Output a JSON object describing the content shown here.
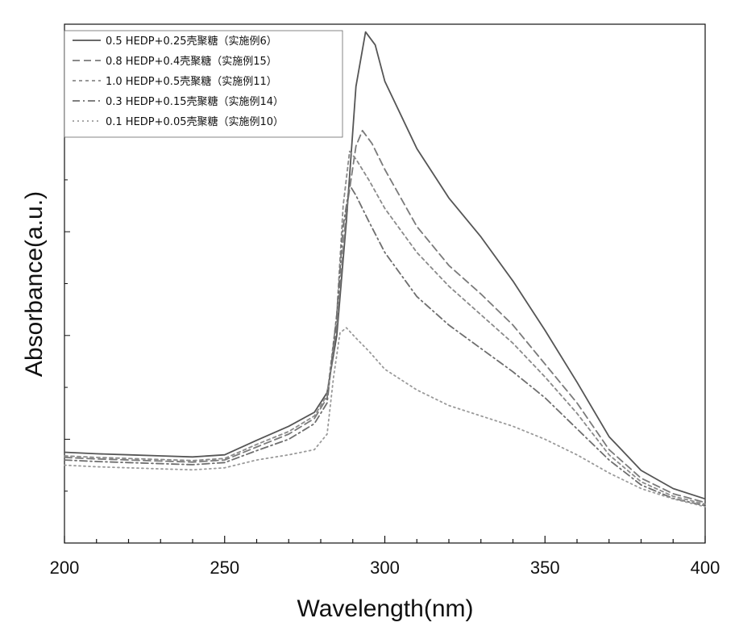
{
  "chart_data": {
    "type": "line",
    "title": "",
    "xlabel": "Wavelength(nm)",
    "ylabel": "Absorbance(a.u.)",
    "xlim": [
      200,
      400
    ],
    "ylim": [
      0,
      1.0
    ],
    "x_ticks": [
      200,
      250,
      300,
      350,
      400
    ],
    "x_tick_labels": [
      "200",
      "250",
      "300",
      "350",
      "400"
    ],
    "y_ticks_labeled": false,
    "grid": false,
    "legend_position": "top-left",
    "series": [
      {
        "name": "0.5 HEDP+0.25壳聚糖（实施例6）",
        "style": "solid",
        "color": "#555555",
        "points": [
          [
            200,
            0.175
          ],
          [
            210,
            0.172
          ],
          [
            220,
            0.17
          ],
          [
            230,
            0.168
          ],
          [
            240,
            0.166
          ],
          [
            250,
            0.17
          ],
          [
            260,
            0.198
          ],
          [
            270,
            0.225
          ],
          [
            278,
            0.252
          ],
          [
            282,
            0.29
          ],
          [
            285,
            0.4
          ],
          [
            288,
            0.62
          ],
          [
            291,
            0.88
          ],
          [
            294,
            0.985
          ],
          [
            297,
            0.96
          ],
          [
            300,
            0.89
          ],
          [
            310,
            0.76
          ],
          [
            320,
            0.665
          ],
          [
            330,
            0.59
          ],
          [
            340,
            0.505
          ],
          [
            350,
            0.41
          ],
          [
            360,
            0.31
          ],
          [
            370,
            0.205
          ],
          [
            380,
            0.14
          ],
          [
            390,
            0.105
          ],
          [
            400,
            0.085
          ]
        ]
      },
      {
        "name": "0.8 HEDP+0.4壳聚糖（实施例15）",
        "style": "dash",
        "color": "#7a7a7a",
        "points": [
          [
            200,
            0.165
          ],
          [
            210,
            0.162
          ],
          [
            220,
            0.16
          ],
          [
            230,
            0.158
          ],
          [
            240,
            0.156
          ],
          [
            250,
            0.16
          ],
          [
            260,
            0.185
          ],
          [
            270,
            0.21
          ],
          [
            278,
            0.24
          ],
          [
            282,
            0.28
          ],
          [
            285,
            0.42
          ],
          [
            288,
            0.64
          ],
          [
            291,
            0.765
          ],
          [
            293,
            0.795
          ],
          [
            296,
            0.77
          ],
          [
            300,
            0.72
          ],
          [
            310,
            0.61
          ],
          [
            320,
            0.535
          ],
          [
            330,
            0.48
          ],
          [
            340,
            0.42
          ],
          [
            350,
            0.345
          ],
          [
            360,
            0.27
          ],
          [
            370,
            0.18
          ],
          [
            380,
            0.125
          ],
          [
            390,
            0.095
          ],
          [
            400,
            0.078
          ]
        ]
      },
      {
        "name": "1.0 HEDP+0.5壳聚糖（实施例11）",
        "style": "short-dash",
        "color": "#8a8a8a",
        "points": [
          [
            200,
            0.168
          ],
          [
            210,
            0.165
          ],
          [
            220,
            0.163
          ],
          [
            230,
            0.161
          ],
          [
            240,
            0.159
          ],
          [
            250,
            0.163
          ],
          [
            260,
            0.19
          ],
          [
            270,
            0.215
          ],
          [
            278,
            0.245
          ],
          [
            282,
            0.285
          ],
          [
            285,
            0.44
          ],
          [
            287,
            0.65
          ],
          [
            289,
            0.755
          ],
          [
            291,
            0.74
          ],
          [
            295,
            0.7
          ],
          [
            300,
            0.645
          ],
          [
            310,
            0.56
          ],
          [
            320,
            0.495
          ],
          [
            330,
            0.44
          ],
          [
            340,
            0.385
          ],
          [
            350,
            0.32
          ],
          [
            360,
            0.25
          ],
          [
            370,
            0.17
          ],
          [
            380,
            0.118
          ],
          [
            390,
            0.09
          ],
          [
            400,
            0.075
          ]
        ]
      },
      {
        "name": "0.3 HEDP+0.15壳聚糖（实施例14）",
        "style": "dash-dot",
        "color": "#6e6e6e",
        "points": [
          [
            200,
            0.16
          ],
          [
            210,
            0.157
          ],
          [
            220,
            0.155
          ],
          [
            230,
            0.153
          ],
          [
            240,
            0.151
          ],
          [
            250,
            0.155
          ],
          [
            260,
            0.178
          ],
          [
            270,
            0.2
          ],
          [
            278,
            0.23
          ],
          [
            282,
            0.27
          ],
          [
            285,
            0.44
          ],
          [
            287,
            0.61
          ],
          [
            289,
            0.69
          ],
          [
            291,
            0.67
          ],
          [
            295,
            0.62
          ],
          [
            300,
            0.56
          ],
          [
            310,
            0.475
          ],
          [
            320,
            0.42
          ],
          [
            330,
            0.375
          ],
          [
            340,
            0.33
          ],
          [
            350,
            0.28
          ],
          [
            360,
            0.22
          ],
          [
            370,
            0.16
          ],
          [
            380,
            0.112
          ],
          [
            390,
            0.086
          ],
          [
            400,
            0.072
          ]
        ]
      },
      {
        "name": "0.1 HEDP+0.05壳聚糖（实施例10）",
        "style": "dot-dot",
        "color": "#9a9a9a",
        "points": [
          [
            200,
            0.15
          ],
          [
            210,
            0.147
          ],
          [
            220,
            0.145
          ],
          [
            230,
            0.143
          ],
          [
            240,
            0.141
          ],
          [
            250,
            0.145
          ],
          [
            260,
            0.16
          ],
          [
            270,
            0.17
          ],
          [
            278,
            0.18
          ],
          [
            282,
            0.21
          ],
          [
            284,
            0.32
          ],
          [
            286,
            0.405
          ],
          [
            288,
            0.415
          ],
          [
            291,
            0.395
          ],
          [
            295,
            0.37
          ],
          [
            300,
            0.335
          ],
          [
            310,
            0.295
          ],
          [
            320,
            0.265
          ],
          [
            330,
            0.245
          ],
          [
            340,
            0.225
          ],
          [
            350,
            0.2
          ],
          [
            360,
            0.17
          ],
          [
            370,
            0.135
          ],
          [
            380,
            0.105
          ],
          [
            390,
            0.085
          ],
          [
            400,
            0.07
          ]
        ]
      }
    ]
  }
}
